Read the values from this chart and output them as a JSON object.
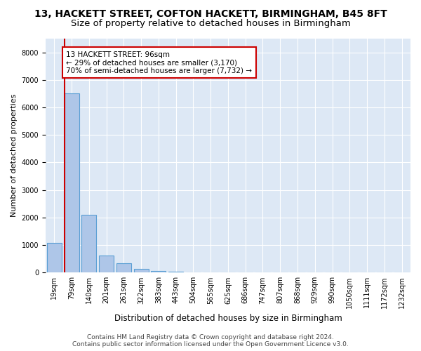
{
  "title_line1": "13, HACKETT STREET, COFTON HACKETT, BIRMINGHAM, B45 8FT",
  "title_line2": "Size of property relative to detached houses in Birmingham",
  "xlabel": "Distribution of detached houses by size in Birmingham",
  "ylabel": "Number of detached properties",
  "bar_color": "#aec6e8",
  "bar_edge_color": "#5a9fd4",
  "line_color": "#cc0000",
  "annotation_box_color": "#cc0000",
  "background_color": "#dde8f5",
  "grid_color": "white",
  "bins": [
    "19sqm",
    "79sqm",
    "140sqm",
    "201sqm",
    "261sqm",
    "322sqm",
    "383sqm",
    "443sqm",
    "504sqm",
    "565sqm",
    "625sqm",
    "686sqm",
    "747sqm",
    "807sqm",
    "868sqm",
    "929sqm",
    "990sqm",
    "1050sqm",
    "1111sqm",
    "1172sqm",
    "1232sqm"
  ],
  "values": [
    1080,
    6500,
    2100,
    620,
    340,
    130,
    60,
    45,
    20,
    0,
    0,
    0,
    0,
    0,
    0,
    0,
    0,
    0,
    0,
    0,
    0
  ],
  "property_size": 96,
  "property_bin_index": 1,
  "annotation_line1": "13 HACKETT STREET: 96sqm",
  "annotation_line2": "← 29% of detached houses are smaller (3,170)",
  "annotation_line3": "70% of semi-detached houses are larger (7,732) →",
  "ylim": [
    0,
    8500
  ],
  "yticks": [
    0,
    1000,
    2000,
    3000,
    4000,
    5000,
    6000,
    7000,
    8000
  ],
  "footer_line1": "Contains HM Land Registry data © Crown copyright and database right 2024.",
  "footer_line2": "Contains public sector information licensed under the Open Government Licence v3.0.",
  "title_fontsize": 10,
  "subtitle_fontsize": 9.5,
  "xlabel_fontsize": 8.5,
  "ylabel_fontsize": 8,
  "tick_fontsize": 7,
  "footer_fontsize": 6.5,
  "annotation_fontsize": 7.5
}
